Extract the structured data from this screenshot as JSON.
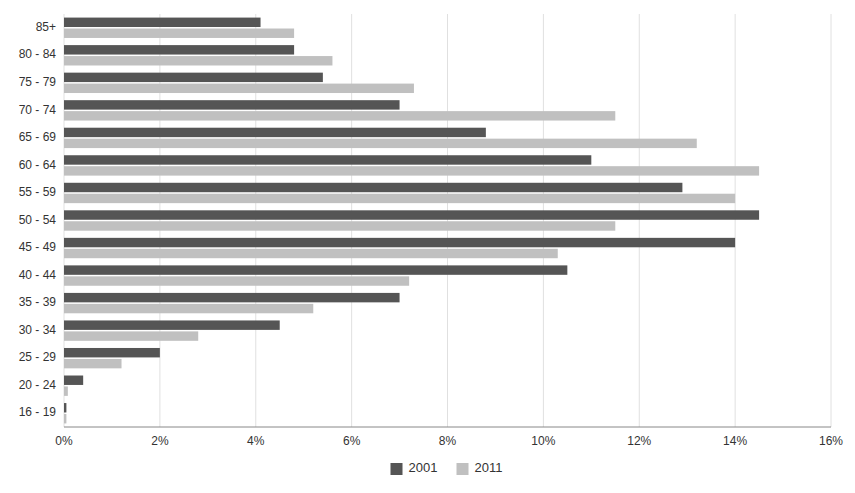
{
  "chart_data": {
    "type": "bar",
    "orientation": "horizontal",
    "categories": [
      "16 - 19",
      "20 - 24",
      "25 - 29",
      "30 - 34",
      "35 - 39",
      "40 - 44",
      "45 - 49",
      "50 - 54",
      "55 - 59",
      "60 - 64",
      "65 - 69",
      "70 - 74",
      "75 - 79",
      "80 - 84",
      "85+"
    ],
    "series": [
      {
        "name": "2001",
        "color": "#555555",
        "values": [
          0.05,
          0.4,
          2.0,
          4.5,
          7.0,
          10.5,
          14.0,
          14.5,
          12.9,
          11.0,
          8.8,
          7.0,
          5.4,
          4.8,
          4.1
        ]
      },
      {
        "name": "2011",
        "color": "#c0c0c0",
        "values": [
          0.05,
          0.08,
          1.2,
          2.8,
          5.2,
          7.2,
          10.3,
          11.5,
          14.0,
          14.5,
          13.2,
          11.5,
          7.3,
          5.6,
          4.8
        ]
      }
    ],
    "xlim": [
      0,
      16
    ],
    "xticks": [
      {
        "value": 0,
        "label": "0%"
      },
      {
        "value": 2,
        "label": "2%"
      },
      {
        "value": 4,
        "label": "4%"
      },
      {
        "value": 6,
        "label": "6%"
      },
      {
        "value": 8,
        "label": "8%"
      },
      {
        "value": 10,
        "label": "10%"
      },
      {
        "value": 12,
        "label": "12%"
      },
      {
        "value": 14,
        "label": "14%"
      },
      {
        "value": 16,
        "label": "16%"
      }
    ],
    "grid": true,
    "legend": "bottom"
  }
}
